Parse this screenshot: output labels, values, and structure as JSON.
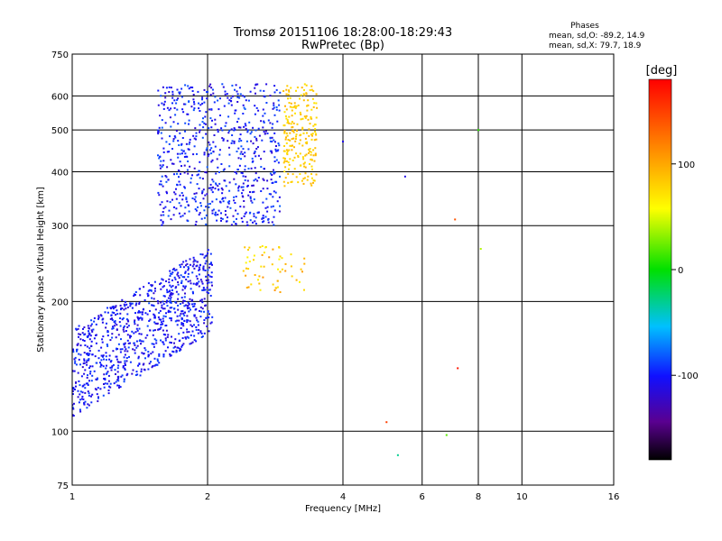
{
  "chart_data": {
    "type": "scatter",
    "title": "Tromsø 20151106 18:28:00-18:29:43",
    "subtitle": "RwPretec (Bp)",
    "xlabel": "Frequency [MHz]",
    "ylabel": "Stationary phase Virtual Height [km]",
    "xscale": "log",
    "yscale": "log",
    "xlim": [
      1,
      16
    ],
    "ylim": [
      75,
      750
    ],
    "x_ticks": [
      "1",
      "2",
      "4",
      "6",
      "8",
      "10",
      "16"
    ],
    "y_ticks": [
      "75",
      "100",
      "200",
      "300",
      "400",
      "500",
      "600",
      "750"
    ],
    "phase_info": {
      "heading": "Phases",
      "line_o": "mean, sd,O: -89.2, 14.9",
      "line_x": "mean, sd,X:  79.7, 18.9"
    },
    "colorbar": {
      "unit_label": "[deg]",
      "ticks": [
        "100",
        "0",
        "-100"
      ],
      "range": [
        -180,
        180
      ]
    },
    "colors": {
      "frame": "#000000",
      "grid": "#000000",
      "o_trace": "#1a3fe0",
      "x_trace": "#b8f020"
    },
    "clusters": [
      {
        "name": "o-trace-lower",
        "count": 900,
        "f": [
          1.0,
          2.05
        ],
        "h": [
          108,
          250
        ],
        "phase": [
          -120,
          -85
        ]
      },
      {
        "name": "o-trace-upper",
        "count": 700,
        "f": [
          1.55,
          2.9
        ],
        "h": [
          300,
          640
        ],
        "phase": [
          -120,
          -80
        ]
      },
      {
        "name": "x-trace-upper",
        "count": 220,
        "f": [
          2.95,
          3.5
        ],
        "h": [
          370,
          640
        ],
        "phase": [
          70,
          95
        ]
      },
      {
        "name": "x-trace-mid",
        "count": 60,
        "f": [
          2.4,
          3.3
        ],
        "h": [
          210,
          270
        ],
        "phase": [
          60,
          110
        ]
      }
    ],
    "scattered_points": [
      {
        "f": 6.8,
        "h": 98,
        "phase": 20
      },
      {
        "f": 5.3,
        "h": 88,
        "phase": -30
      },
      {
        "f": 7.1,
        "h": 310,
        "phase": 140
      },
      {
        "f": 7.2,
        "h": 140,
        "phase": 170
      },
      {
        "f": 4.0,
        "h": 470,
        "phase": -110
      },
      {
        "f": 5.5,
        "h": 390,
        "phase": -110
      },
      {
        "f": 8.1,
        "h": 265,
        "phase": 40
      },
      {
        "f": 8.0,
        "h": 500,
        "phase": 10
      },
      {
        "f": 5.0,
        "h": 105,
        "phase": 150
      }
    ]
  }
}
